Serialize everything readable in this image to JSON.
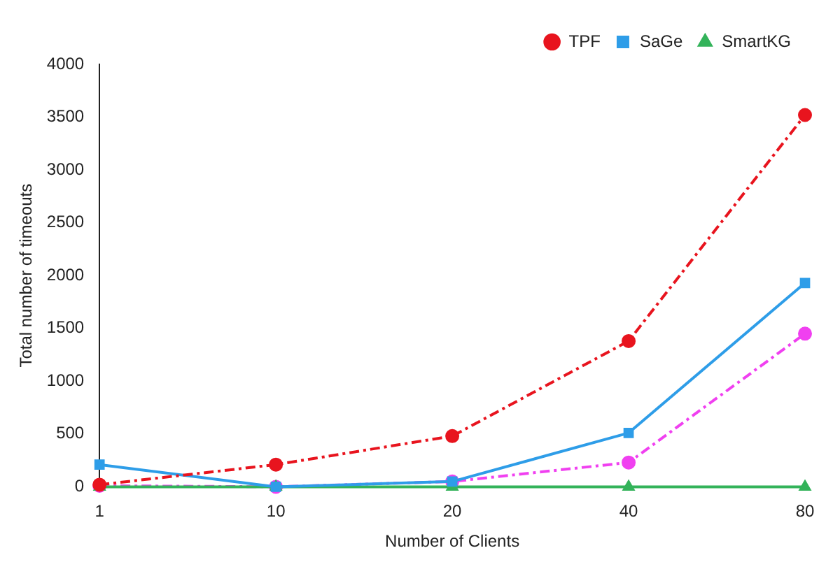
{
  "chart_data": {
    "type": "line",
    "xlabel": "Number of Clients",
    "ylabel": "Total number of timeouts",
    "categories": [
      "1",
      "10",
      "20",
      "40",
      "80"
    ],
    "ylim": [
      0,
      4000
    ],
    "yticks": [
      0,
      500,
      1000,
      1500,
      2000,
      2500,
      3000,
      3500,
      4000
    ],
    "grid": false,
    "legend": "top right",
    "series": [
      {
        "name": "TPF",
        "color": "#e8141e",
        "values": [
          20,
          210,
          480,
          1380,
          3520
        ],
        "marker": "circle",
        "line_style": "dashed"
      },
      {
        "name": "SaGe",
        "color": "#2e9de8",
        "values": [
          210,
          0,
          50,
          510,
          1930
        ],
        "marker": "square",
        "line_style": "solid"
      },
      {
        "name": "SmartKG",
        "color": "#33b35a",
        "values": [
          0,
          0,
          0,
          0,
          0
        ],
        "marker": "triangle",
        "line_style": "solid"
      },
      {
        "color": "#f040f0",
        "values": [
          10,
          0,
          50,
          230,
          1450
        ],
        "marker": "circle",
        "line_style": "dashed"
      }
    ]
  }
}
